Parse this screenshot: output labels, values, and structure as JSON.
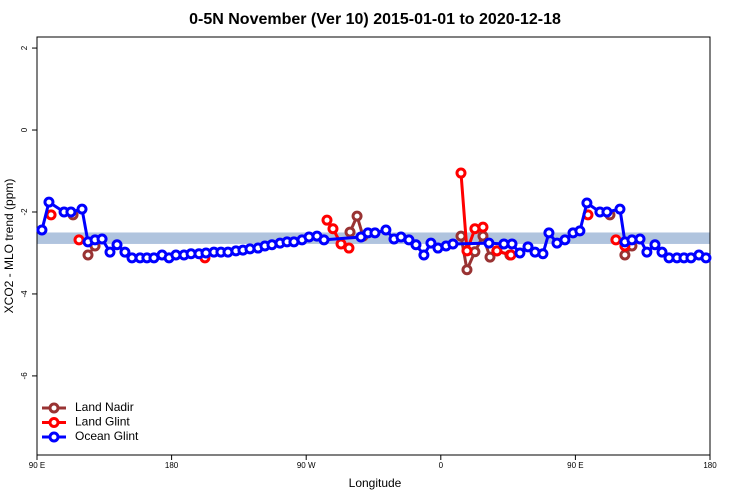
{
  "chart_data": {
    "type": "line",
    "title": "0-5N November (Ver 10)   2015-01-01 to 2020-12-18",
    "x_label": "Longitude",
    "y_label": "XCO2 - MLO trend (ppm)",
    "xlim": [
      90,
      540
    ],
    "ylim": [
      -7.93,
      2.27
    ],
    "xticks": [
      {
        "value": 90,
        "label": "90 E"
      },
      180,
      {
        "value": 270,
        "label": "90 W"
      },
      {
        "value": 360,
        "label": "0"
      },
      {
        "value": 450,
        "label": "90 E"
      },
      {
        "value": 540,
        "label": "180"
      }
    ],
    "yticks": [
      -6,
      -4,
      -2,
      0,
      2
    ],
    "band": {
      "ymin": -2.78,
      "ymax": -2.5,
      "color": "#b0c4de"
    },
    "legend": "bottom-left",
    "series": [
      {
        "name": "Land Nadir",
        "color": "#993333",
        "x": [
          114.1,
          null,
          124.1,
          128.8,
          null,
          299.3,
          304,
          308,
          null,
          373.5,
          377.5,
          382.8,
          388.2,
          392.9,
          397.5,
          406.2,
          null,
          473.1,
          null,
          483.1,
          487.8
        ],
        "values": [
          -2.07,
          null,
          -3.05,
          -2.83,
          null,
          -2.49,
          -2.1,
          -2.59,
          null,
          -2.59,
          -3.41,
          -2.97,
          -2.59,
          -3.1,
          -2.95,
          -3.05,
          null,
          -2.07,
          null,
          -3.05,
          -2.83
        ]
      },
      {
        "name": "Land Glint",
        "color": "#ff0000",
        "x": [
          99.4,
          null,
          118.1,
          null,
          202.3,
          null,
          283.9,
          287.9,
          293.3,
          298.6,
          null,
          373.5,
          377.5,
          382.8,
          388.2,
          null,
          397.5,
          406.9,
          null,
          458.4,
          null,
          477.1,
          483.1
        ],
        "values": [
          -2.07,
          null,
          -2.68,
          null,
          -3.12,
          null,
          -2.2,
          -2.41,
          -2.78,
          -2.88,
          null,
          -1.05,
          -2.95,
          -2.41,
          -2.37,
          null,
          -2.95,
          -3.05,
          null,
          -2.07,
          null,
          -2.68,
          -2.83
        ]
      },
      {
        "name": "Ocean Glint",
        "color": "#0000ff",
        "x": [
          93.3,
          98,
          108.1,
          112.7,
          120.1,
          124.1,
          128.8,
          133.5,
          138.8,
          143.5,
          148.8,
          153.5,
          158.9,
          163.5,
          168.2,
          173.6,
          178.3,
          182.9,
          188.3,
          193,
          198.3,
          203,
          208.3,
          213,
          217.7,
          223,
          227.7,
          232.4,
          237.8,
          242.4,
          247.1,
          252.5,
          257.2,
          261.8,
          267.2,
          271.9,
          277.2,
          281.9,
          306.6,
          311.3,
          316,
          323.3,
          328.7,
          333.4,
          338.7,
          343.4,
          348.7,
          353.4,
          358.1,
          363.5,
          368.1,
          392.2,
          402.2,
          407.6,
          412.9,
          418.3,
          423,
          428.3,
          432.3,
          437.7,
          443,
          448.4,
          453,
          457.7,
          466.4,
          471.1,
          479.8,
          483.1,
          487.8,
          493.2,
          497.8,
          503.2,
          507.9,
          512.6,
          517.9,
          522.6,
          527.3,
          532.6,
          537.3
        ],
        "values": [
          -2.44,
          -1.76,
          -2.0,
          -2.0,
          -1.93,
          -2.73,
          -2.68,
          -2.66,
          -2.98,
          -2.8,
          -2.98,
          -3.12,
          -3.12,
          -3.12,
          -3.12,
          -3.05,
          -3.12,
          -3.05,
          -3.05,
          -3.02,
          -3.02,
          -3.0,
          -2.98,
          -2.98,
          -2.98,
          -2.95,
          -2.93,
          -2.9,
          -2.88,
          -2.83,
          -2.8,
          -2.76,
          -2.73,
          -2.73,
          -2.68,
          -2.61,
          -2.59,
          -2.68,
          -2.61,
          -2.51,
          -2.51,
          -2.44,
          -2.66,
          -2.61,
          -2.68,
          -2.8,
          -3.05,
          -2.76,
          -2.88,
          -2.83,
          -2.78,
          -2.76,
          -2.78,
          -2.78,
          -3.0,
          -2.85,
          -2.98,
          -3.02,
          -2.51,
          -2.76,
          -2.68,
          -2.51,
          -2.46,
          -1.78,
          -2.0,
          -2.0,
          -1.93,
          -2.73,
          -2.68,
          -2.66,
          -2.98,
          -2.8,
          -2.98,
          -3.12,
          -3.12,
          -3.12,
          -3.12,
          -3.05,
          -3.12
        ]
      }
    ]
  }
}
